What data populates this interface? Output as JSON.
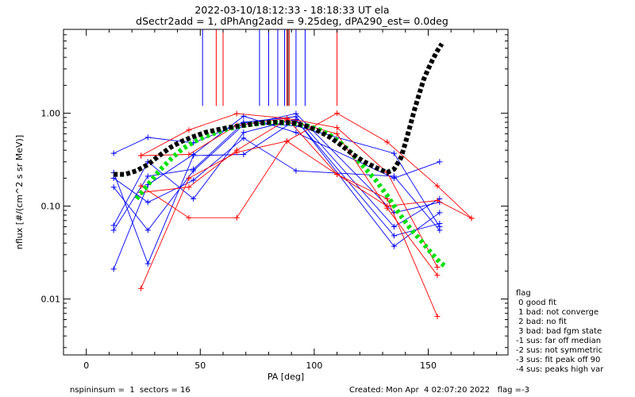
{
  "chart_data": {
    "type": "scatter",
    "title": "2022-03-10/18:12:33 - 18:18:33 UT ela",
    "subtitle": "dSectr2add = 1, dPhAng2add = 9.25deg, dPA290_est=    0.0deg",
    "xlabel": "PA [deg]",
    "ylabel": "nflux [#/(cm^2 s sr MeV)]",
    "xlim": [
      -10,
      185
    ],
    "ylim": [
      0.0025,
      8
    ],
    "y_scale": "log",
    "x_ticks": [
      0,
      50,
      100,
      150
    ],
    "x_tick_labels": [
      "0",
      "50",
      "100",
      "150"
    ],
    "y_ticks": [
      0.01,
      0.1,
      1.0
    ],
    "y_tick_labels": [
      "0.01",
      "0.10",
      "1.00"
    ],
    "vertical_markers": [
      {
        "x": 51,
        "color": "#0000ff"
      },
      {
        "x": 57,
        "color": "#ff0000"
      },
      {
        "x": 60,
        "color": "#ff0000"
      },
      {
        "x": 76,
        "color": "#0000ff"
      },
      {
        "x": 80,
        "color": "#0000ff"
      },
      {
        "x": 84,
        "color": "#0000ff"
      },
      {
        "x": 87,
        "color": "#0000ff"
      },
      {
        "x": 88,
        "color": "#ff0000"
      },
      {
        "x": 88.5,
        "color": "#000000"
      },
      {
        "x": 89,
        "color": "#ff0000"
      },
      {
        "x": 92,
        "color": "#0000ff"
      },
      {
        "x": 96,
        "color": "#0000ff"
      },
      {
        "x": 110,
        "color": "#ff0000"
      }
    ],
    "series": [
      {
        "color": "#0000ff",
        "x": [
          12,
          27,
          47,
          69,
          92,
          135,
          155
        ],
        "y": [
          0.16,
          0.055,
          0.24,
          0.75,
          0.99,
          0.085,
          0.11
        ]
      },
      {
        "color": "#0000ff",
        "x": [
          12,
          27,
          47,
          69,
          92,
          135,
          155
        ],
        "y": [
          0.37,
          0.55,
          0.48,
          0.8,
          0.92,
          0.06,
          0.12
        ]
      },
      {
        "color": "#0000ff",
        "x": [
          12,
          27,
          47,
          69,
          92,
          135,
          155
        ],
        "y": [
          0.062,
          0.3,
          0.12,
          0.62,
          0.86,
          0.037,
          0.085
        ]
      },
      {
        "color": "#0000ff",
        "x": [
          12,
          27,
          47,
          69,
          92,
          135,
          155
        ],
        "y": [
          0.021,
          0.17,
          0.36,
          0.93,
          0.62,
          0.2,
          0.3
        ]
      },
      {
        "color": "#0000ff",
        "x": [
          12,
          27,
          47,
          69,
          92,
          135,
          155
        ],
        "y": [
          0.2,
          0.11,
          0.19,
          0.54,
          0.24,
          0.21,
          0.055
        ]
      },
      {
        "color": "#0000ff",
        "x": [
          12,
          27,
          47,
          69,
          92,
          135,
          155
        ],
        "y": [
          0.23,
          0.024,
          0.35,
          0.36,
          0.85,
          0.048,
          0.065
        ]
      },
      {
        "color": "#0000ff",
        "x": [
          12,
          27,
          47,
          69,
          92,
          135,
          155
        ],
        "y": [
          0.055,
          0.21,
          0.25,
          0.79,
          0.73,
          0.37,
          0.06
        ]
      },
      {
        "color": "#ff0000",
        "x": [
          24,
          45,
          66,
          88,
          110,
          132,
          154,
          169
        ],
        "y": [
          0.013,
          0.2,
          0.38,
          0.5,
          1.0,
          0.49,
          0.165,
          0.074
        ]
      },
      {
        "color": "#ff0000",
        "x": [
          24,
          45,
          66,
          88,
          110,
          132,
          154,
          169
        ],
        "y": [
          0.35,
          0.66,
          0.99,
          0.88,
          0.22,
          0.1,
          0.115,
          0.074
        ]
      },
      {
        "color": "#ff0000",
        "x": [
          24,
          45,
          66,
          88,
          110,
          132,
          154
        ],
        "y": [
          0.165,
          0.075,
          0.075,
          0.5,
          0.22,
          0.12,
          0.0065
        ]
      },
      {
        "color": "#ff0000",
        "x": [
          24,
          45,
          66,
          88,
          110,
          132,
          154
        ],
        "y": [
          0.14,
          0.16,
          0.4,
          0.85,
          0.6,
          0.095,
          0.018
        ]
      },
      {
        "color": "#ff0000",
        "x": [
          24,
          45,
          66,
          88,
          110,
          132,
          154
        ],
        "y": [
          0.35,
          0.36,
          0.74,
          0.88,
          0.7,
          0.23,
          0.022
        ]
      }
    ],
    "fit_black": {
      "color": "#000000",
      "x": [
        12,
        17,
        22,
        27,
        32,
        37,
        42,
        47,
        52,
        57,
        62,
        67,
        72,
        77,
        82,
        87,
        92,
        97,
        102,
        107,
        112,
        117,
        122,
        127,
        132,
        135,
        138,
        140,
        142,
        144,
        146,
        148,
        150,
        152,
        154,
        156
      ],
      "y": [
        0.22,
        0.22,
        0.24,
        0.28,
        0.35,
        0.43,
        0.5,
        0.56,
        0.62,
        0.66,
        0.7,
        0.73,
        0.76,
        0.79,
        0.8,
        0.8,
        0.78,
        0.72,
        0.64,
        0.55,
        0.45,
        0.36,
        0.3,
        0.26,
        0.23,
        0.25,
        0.33,
        0.48,
        0.72,
        1.1,
        1.6,
        2.3,
        3.0,
        3.8,
        4.7,
        5.6
      ]
    },
    "fit_green": {
      "color": "#00e000",
      "x": [
        22,
        27,
        32,
        37,
        42,
        47,
        52,
        57,
        62,
        67,
        72,
        77,
        82,
        87,
        92,
        97,
        102,
        107,
        112,
        117,
        122,
        127,
        132,
        137,
        142,
        147,
        152,
        155,
        158
      ],
      "y": [
        0.12,
        0.17,
        0.24,
        0.32,
        0.41,
        0.49,
        0.56,
        0.62,
        0.68,
        0.72,
        0.76,
        0.78,
        0.79,
        0.79,
        0.77,
        0.73,
        0.67,
        0.58,
        0.47,
        0.36,
        0.26,
        0.19,
        0.13,
        0.085,
        0.058,
        0.042,
        0.03,
        0.025,
        0.022
      ]
    }
  },
  "footer": {
    "left": "nspininsum =  1  sectors = 16",
    "right": "Created: Mon Apr  4 02:07:20 2022   flag =-3"
  },
  "flag_legend": {
    "title": "flag",
    "items": [
      " 0 good fit",
      " 1 bad: not converge",
      " 2 bad: no fit",
      " 3 bad: bad fgm state",
      "-1 sus: far off median",
      "-2 sus: not symmetric",
      "-3 sus: fit peak off 90",
      "-4 sus: peaks high var"
    ]
  }
}
